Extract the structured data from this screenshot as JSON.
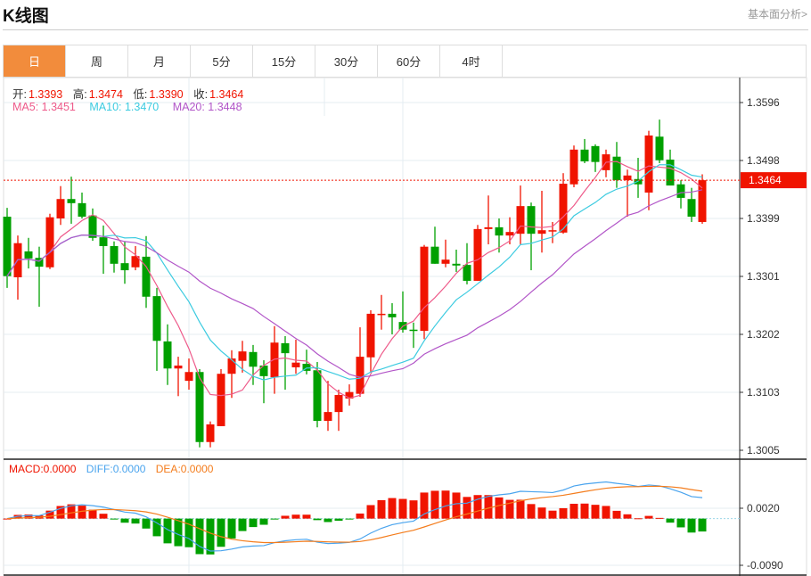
{
  "header": {
    "title": "K线图",
    "fundamental_link": "基本面分析>"
  },
  "tabs": [
    {
      "label": "日",
      "active": true
    },
    {
      "label": "周"
    },
    {
      "label": "月"
    },
    {
      "label": "5分"
    },
    {
      "label": "15分"
    },
    {
      "label": "30分"
    },
    {
      "label": "60分"
    },
    {
      "label": "4时"
    }
  ],
  "ohlc_legend": {
    "open_label": "开:",
    "open": "1.3393",
    "high_label": "高:",
    "high": "1.3474",
    "low_label": "低:",
    "low": "1.3390",
    "close_label": "收:",
    "close": "1.3464"
  },
  "ma_legend": {
    "ma5": "MA5: 1.3451",
    "ma10": "MA10: 1.3470",
    "ma20": "MA20: 1.3448"
  },
  "macd_legend": {
    "macd": "MACD:0.0000",
    "diff": "DIFF:0.0000",
    "dea": "DEA:0.0000"
  },
  "colors": {
    "up": "#f01400",
    "down": "#00a000",
    "ma5": "#ee5a8a",
    "ma10": "#3ccbe0",
    "ma20": "#b256c8",
    "diff": "#4aa4ee",
    "dea": "#f47c1c",
    "accent": "#f28c3c"
  },
  "chart_data": {
    "type": "candlestick",
    "price_axis": {
      "ticks": [
        "1.3596",
        "1.3498",
        "1.3399",
        "1.3301",
        "1.3202",
        "1.3103",
        "1.3005"
      ],
      "range": [
        1.3005,
        1.3596
      ]
    },
    "last_price": "1.3464",
    "macd_axis": {
      "ticks": [
        "0.0020",
        "-0.0090"
      ]
    },
    "candles": [
      [
        1.3402,
        1.3417,
        1.3281,
        1.3301
      ],
      [
        1.3299,
        1.337,
        1.3261,
        1.3357
      ],
      [
        1.3343,
        1.3366,
        1.3314,
        1.3331
      ],
      [
        1.3332,
        1.3351,
        1.3249,
        1.3317
      ],
      [
        1.3316,
        1.3407,
        1.3313,
        1.3401
      ],
      [
        1.3399,
        1.3454,
        1.3388,
        1.3432
      ],
      [
        1.3432,
        1.347,
        1.339,
        1.3425
      ],
      [
        1.3425,
        1.3443,
        1.3399,
        1.3402
      ],
      [
        1.3404,
        1.3416,
        1.3361,
        1.3366
      ],
      [
        1.3367,
        1.3387,
        1.3305,
        1.3352
      ],
      [
        1.3352,
        1.336,
        1.3307,
        1.3322
      ],
      [
        1.3323,
        1.336,
        1.3288,
        1.3311
      ],
      [
        1.3316,
        1.3352,
        1.3311,
        1.3335
      ],
      [
        1.3334,
        1.3369,
        1.3247,
        1.3266
      ],
      [
        1.3267,
        1.3281,
        1.314,
        1.3191
      ],
      [
        1.319,
        1.3219,
        1.3116,
        1.3144
      ],
      [
        1.3144,
        1.3164,
        1.3097,
        1.3149
      ],
      [
        1.3123,
        1.3161,
        1.3108,
        1.3138
      ],
      [
        1.3138,
        1.3143,
        1.301,
        1.3019
      ],
      [
        1.3019,
        1.3054,
        1.301,
        1.3049
      ],
      [
        1.3046,
        1.3143,
        1.3046,
        1.3135
      ],
      [
        1.3135,
        1.3175,
        1.3094,
        1.3161
      ],
      [
        1.3157,
        1.3191,
        1.3137,
        1.3173
      ],
      [
        1.3172,
        1.3184,
        1.3116,
        1.3147
      ],
      [
        1.3149,
        1.3158,
        1.3085,
        1.3131
      ],
      [
        1.3129,
        1.3216,
        1.3101,
        1.3188
      ],
      [
        1.3187,
        1.3199,
        1.3108,
        1.317
      ],
      [
        1.3146,
        1.3193,
        1.3135,
        1.3154
      ],
      [
        1.3152,
        1.3176,
        1.3134,
        1.314
      ],
      [
        1.3141,
        1.3155,
        1.3044,
        1.3055
      ],
      [
        1.3055,
        1.3123,
        1.3038,
        1.307
      ],
      [
        1.307,
        1.3108,
        1.3038,
        1.3099
      ],
      [
        1.3093,
        1.3117,
        1.3081,
        1.3104
      ],
      [
        1.3101,
        1.3214,
        1.3096,
        1.3164
      ],
      [
        1.3163,
        1.3243,
        1.3138,
        1.3237
      ],
      [
        1.3235,
        1.3269,
        1.321,
        1.3237
      ],
      [
        1.3237,
        1.3255,
        1.3202,
        1.3231
      ],
      [
        1.3223,
        1.3275,
        1.3205,
        1.321
      ],
      [
        1.321,
        1.3222,
        1.3179,
        1.3208
      ],
      [
        1.3208,
        1.3354,
        1.3194,
        1.3351
      ],
      [
        1.3351,
        1.3385,
        1.3322,
        1.3322
      ],
      [
        1.3322,
        1.3363,
        1.3316,
        1.3329
      ],
      [
        1.3322,
        1.3346,
        1.3308,
        1.3319
      ],
      [
        1.332,
        1.3357,
        1.3287,
        1.3293
      ],
      [
        1.3293,
        1.3388,
        1.3293,
        1.3381
      ],
      [
        1.3381,
        1.3438,
        1.3355,
        1.3384
      ],
      [
        1.3384,
        1.3399,
        1.3341,
        1.337
      ],
      [
        1.337,
        1.3401,
        1.3355,
        1.3376
      ],
      [
        1.3373,
        1.3455,
        1.3355,
        1.342
      ],
      [
        1.342,
        1.3426,
        1.3311,
        1.3373
      ],
      [
        1.3373,
        1.3446,
        1.3341,
        1.3379
      ],
      [
        1.3378,
        1.3393,
        1.3357,
        1.3379
      ],
      [
        1.3375,
        1.3476,
        1.3373,
        1.3458
      ],
      [
        1.3457,
        1.3523,
        1.3452,
        1.3516
      ],
      [
        1.3516,
        1.3534,
        1.3493,
        1.3496
      ],
      [
        1.3522,
        1.3525,
        1.3478,
        1.3495
      ],
      [
        1.3481,
        1.3516,
        1.3469,
        1.3508
      ],
      [
        1.3504,
        1.3529,
        1.3451,
        1.3464
      ],
      [
        1.3464,
        1.3482,
        1.3402,
        1.3472
      ],
      [
        1.3466,
        1.3502,
        1.3434,
        1.3457
      ],
      [
        1.3443,
        1.3548,
        1.3413,
        1.354
      ],
      [
        1.3538,
        1.3567,
        1.3493,
        1.3498
      ],
      [
        1.3499,
        1.3516,
        1.3455,
        1.3455
      ],
      [
        1.3457,
        1.3464,
        1.3416,
        1.3434
      ],
      [
        1.3432,
        1.3451,
        1.3393,
        1.3402
      ],
      [
        1.3393,
        1.3474,
        1.339,
        1.3464
      ]
    ]
  }
}
